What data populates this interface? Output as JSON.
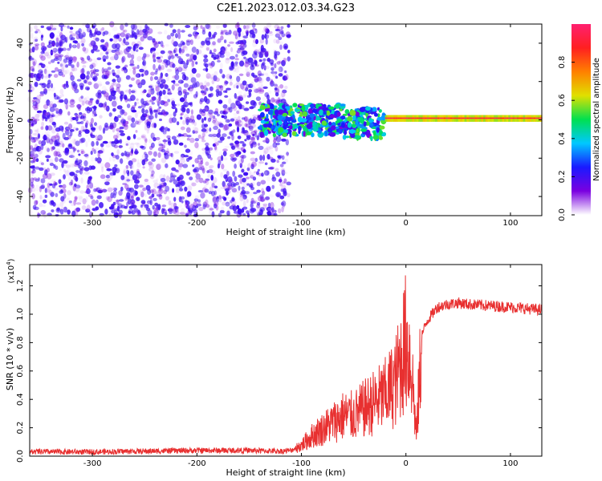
{
  "title": "C2E1.2023.012.03.34.G23",
  "colorbar": {
    "label": "Normalized spectral amplitude",
    "ticks": [
      "0.0",
      "0.2",
      "0.4",
      "0.6",
      "0.8"
    ]
  },
  "chart_data": [
    {
      "type": "heatmap",
      "xlabel": "Height of straight line (km)",
      "ylabel": "Frequency (Hz)",
      "xlim": [
        -360,
        130
      ],
      "ylim": [
        -50,
        50
      ],
      "x_ticks": [
        "-300",
        "-200",
        "-100",
        "0",
        "100"
      ],
      "y_ticks": [
        "-40",
        "-20",
        "0",
        "20",
        "40"
      ],
      "grid": false,
      "color_scale": [
        0,
        1
      ],
      "colormap": [
        "#ffffff",
        "#7a00e0",
        "#1a1aff",
        "#00c8ff",
        "#00e050",
        "#e0e000",
        "#ff8000",
        "#ff2020",
        "#ff2070"
      ]
    },
    {
      "type": "line",
      "xlabel": "Height of straight line (km)",
      "ylabel": "SNR (10 * v/v)",
      "y_scale_label": "(x10",
      "y_scale_exp": "4",
      "xlim": [
        -360,
        130
      ],
      "ylim": [
        0,
        1.35
      ],
      "x_ticks": [
        "-300",
        "-200",
        "-100",
        "0",
        "100"
      ],
      "y_ticks": [
        "0.0",
        "0.2",
        "0.4",
        "0.6",
        "0.8",
        "1.0",
        "1.2"
      ],
      "grid": false,
      "series": [
        {
          "color": "#e83030",
          "x": [
            -360,
            -300,
            -250,
            -200,
            -150,
            -120,
            -110,
            -100,
            -90,
            -80,
            -70,
            -60,
            -50,
            -40,
            -30,
            -20,
            -10,
            -5,
            0,
            5,
            10,
            15,
            20,
            30,
            40,
            50,
            60,
            80,
            100,
            115,
            130
          ],
          "y": [
            0.03,
            0.03,
            0.035,
            0.04,
            0.04,
            0.035,
            0.04,
            0.08,
            0.15,
            0.2,
            0.25,
            0.3,
            0.3,
            0.35,
            0.4,
            0.45,
            0.55,
            0.7,
            0.85,
            0.7,
            0.15,
            0.85,
            0.95,
            1.05,
            1.07,
            1.08,
            1.07,
            1.06,
            1.05,
            1.04,
            1.03
          ]
        }
      ]
    }
  ]
}
